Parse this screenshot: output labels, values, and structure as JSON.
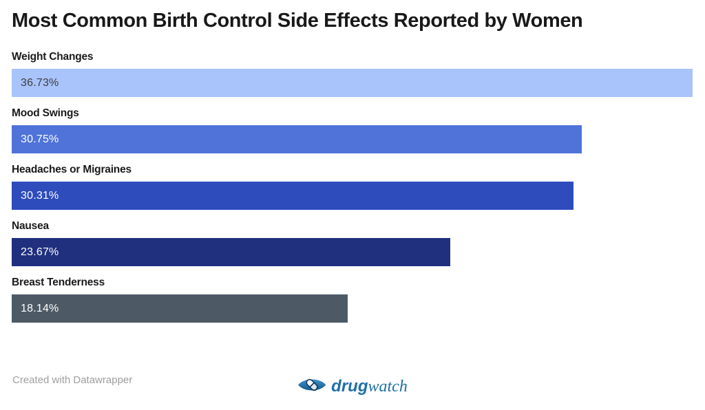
{
  "title": "Most Common Birth Control Side Effects Reported by Women",
  "chart_data": {
    "type": "bar",
    "orientation": "horizontal",
    "title": "Most Common Birth Control Side Effects Reported by Women",
    "categories": [
      "Weight Changes",
      "Mood Swings",
      "Headaches or Migraines",
      "Nausea",
      "Breast Tenderness"
    ],
    "values": [
      36.73,
      30.75,
      30.31,
      23.67,
      18.14
    ],
    "value_labels": [
      "36.73%",
      "30.75%",
      "30.31%",
      "23.67%",
      "18.14%"
    ],
    "bar_colors": [
      "#a9c3fb",
      "#4f73d9",
      "#2e4cbc",
      "#20307f",
      "#4d5a66"
    ],
    "value_text_colors": [
      "#3d3d3d",
      "#ffffff",
      "#ffffff",
      "#ffffff",
      "#ffffff"
    ],
    "xlim": [
      0,
      36.73
    ],
    "xlabel": "",
    "ylabel": "",
    "grid": false,
    "legend_position": "none",
    "bar_label_position": "above-bar",
    "value_label_position": "inside-left"
  },
  "footer": {
    "attribution": "Created with Datawrapper",
    "brand": {
      "icon": "eye-pill-icon",
      "name_bold": "drug",
      "name_regular": "watch",
      "color": "#1e6fa8"
    }
  }
}
